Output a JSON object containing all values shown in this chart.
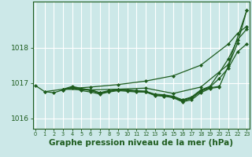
{
  "background_color": "#cce8e8",
  "line_color": "#1e5c1e",
  "grid_color": "#ffffff",
  "xlabel": "Graphe pression niveau de la mer (hPa)",
  "xlabel_fontsize": 7.5,
  "xlim_min": -0.3,
  "xlim_max": 23.3,
  "ylim_min": 1015.7,
  "ylim_max": 1019.3,
  "yticks": [
    1016,
    1017,
    1018
  ],
  "xticks": [
    0,
    1,
    2,
    3,
    4,
    5,
    6,
    7,
    8,
    9,
    10,
    11,
    12,
    13,
    14,
    15,
    16,
    17,
    18,
    19,
    20,
    21,
    22,
    23
  ],
  "series": [
    {
      "x": [
        0,
        1,
        2,
        3,
        4,
        5,
        6,
        7,
        8,
        9,
        10,
        11,
        12,
        13,
        14,
        15,
        16,
        17,
        18,
        19,
        20,
        21,
        22,
        23
      ],
      "y": [
        1016.92,
        1016.75,
        1016.72,
        1016.8,
        1016.85,
        1016.78,
        1016.74,
        1016.68,
        1016.74,
        1016.78,
        1016.76,
        1016.74,
        1016.74,
        1016.64,
        1016.62,
        1016.58,
        1016.46,
        1016.52,
        1016.72,
        1016.84,
        1016.88,
        1017.48,
        1018.12,
        1019.05
      ]
    },
    {
      "x": [
        3,
        4,
        5,
        6,
        7,
        8,
        9,
        10,
        11,
        12,
        13,
        14,
        15,
        16,
        17,
        18,
        19,
        20,
        21,
        22,
        23
      ],
      "y": [
        1016.8,
        1016.88,
        1016.82,
        1016.78,
        1016.7,
        1016.76,
        1016.8,
        1016.78,
        1016.76,
        1016.74,
        1016.66,
        1016.64,
        1016.6,
        1016.5,
        1016.58,
        1016.78,
        1016.88,
        1017.12,
        1017.42,
        1017.88,
        1018.1
      ]
    },
    {
      "x": [
        3,
        4,
        5,
        6,
        7,
        8,
        9,
        10,
        11,
        12,
        13,
        14,
        15,
        16,
        17,
        18,
        19,
        20,
        21,
        22,
        23
      ],
      "y": [
        1016.82,
        1016.9,
        1016.84,
        1016.8,
        1016.72,
        1016.78,
        1016.82,
        1016.8,
        1016.78,
        1016.76,
        1016.68,
        1016.66,
        1016.62,
        1016.52,
        1016.6,
        1016.8,
        1016.9,
        1017.28,
        1017.68,
        1018.22,
        1018.52
      ]
    },
    {
      "x": [
        3,
        6,
        9,
        12,
        15,
        18,
        21,
        23
      ],
      "y": [
        1016.82,
        1016.8,
        1016.82,
        1016.85,
        1016.7,
        1016.88,
        1017.52,
        1019.05
      ]
    },
    {
      "x": [
        4,
        5,
        6,
        7,
        8,
        9,
        10,
        11,
        12,
        13,
        14,
        15,
        16,
        17,
        18,
        19,
        20
      ],
      "y": [
        1016.88,
        1016.82,
        1016.8,
        1016.72,
        1016.76,
        1016.8,
        1016.8,
        1016.76,
        1016.76,
        1016.66,
        1016.64,
        1016.58,
        1016.48,
        1016.56,
        1016.76,
        1016.86,
        1016.9
      ]
    },
    {
      "x": [
        1,
        3,
        6,
        9,
        12,
        15,
        18,
        21,
        22,
        23
      ],
      "y": [
        1016.75,
        1016.82,
        1016.88,
        1016.95,
        1017.05,
        1017.2,
        1017.5,
        1018.1,
        1018.4,
        1018.6
      ]
    }
  ],
  "marker": "D",
  "marker_size": 2.0,
  "linewidth": 0.9
}
